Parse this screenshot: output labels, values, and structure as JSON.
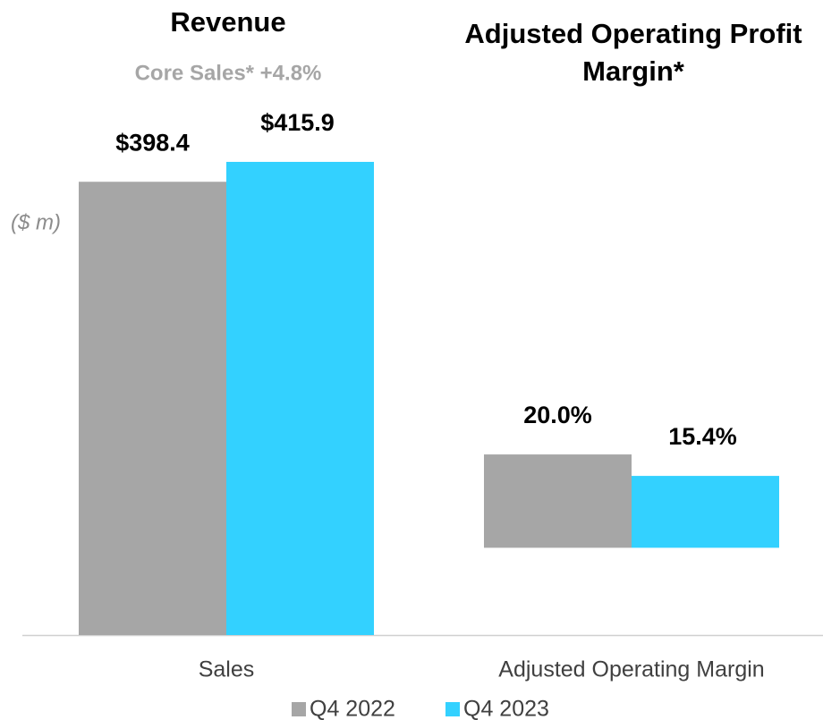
{
  "chart_data": [
    {
      "type": "bar",
      "title": "Revenue",
      "subtitle": "Core Sales* +4.8%",
      "unit_label": "($ m)",
      "categories": [
        "Sales"
      ],
      "series": [
        {
          "name": "Q4 2022",
          "color": "#a6a6a6",
          "values": [
            398.4
          ],
          "value_labels": [
            "$398.4"
          ]
        },
        {
          "name": "Q4 2023",
          "color": "#33d1ff",
          "values": [
            415.9
          ],
          "value_labels": [
            "$415.9"
          ]
        }
      ],
      "ylim": [
        0,
        500
      ]
    },
    {
      "type": "bar",
      "title": "Adjusted Operating Profit Margin*",
      "categories": [
        "Adjusted Operating Margin"
      ],
      "series": [
        {
          "color": "#a6a6a6",
          "values": [
            20.0
          ],
          "value_labels": [
            "20.0%"
          ]
        },
        {
          "color": "#33d1ff",
          "values": [
            15.4
          ],
          "value_labels": [
            "15.4%"
          ]
        }
      ],
      "ylim": [
        -18.7,
        103.2
      ]
    }
  ]
}
